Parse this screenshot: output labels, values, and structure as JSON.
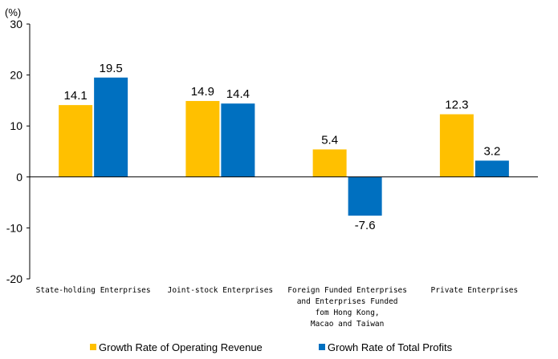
{
  "chart_data": {
    "type": "bar",
    "unit_label": "(%)",
    "categories": [
      [
        "State-holding  Enterprises"
      ],
      [
        "Joint-stock  Enterprises"
      ],
      [
        "Foreign Funded Enterprises",
        "and Enterprises Funded",
        "fom Hong Kong,",
        "Macao and Taiwan"
      ],
      [
        "Private Enterprises"
      ]
    ],
    "series": [
      {
        "name": "Growth Rate of Operating Revenue",
        "values": [
          14.1,
          14.9,
          5.4,
          12.3
        ],
        "color": "#FFC000"
      },
      {
        "name": "Growh Rate of Total Profits",
        "values": [
          19.5,
          14.4,
          -7.6,
          3.2
        ],
        "color": "#0070C0"
      }
    ],
    "data_labels": [
      [
        "14.1",
        "14.9",
        "5.4",
        "12.3"
      ],
      [
        "19.5",
        "14.4",
        "-7.6",
        "3.2"
      ]
    ],
    "ylim": [
      -20,
      30
    ],
    "yticks": [
      -20,
      -10,
      0,
      10,
      20,
      30
    ],
    "grid": false,
    "legend_position": "bottom"
  }
}
